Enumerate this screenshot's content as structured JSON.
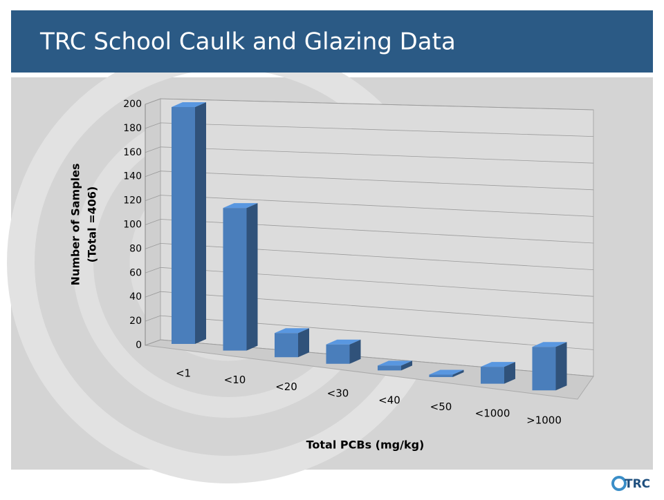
{
  "header": {
    "title": "TRC School Caulk and Glazing Data"
  },
  "logo": "TRC",
  "chart_data": {
    "type": "bar3d",
    "ylabel_lines": [
      "Number of Samples",
      "(Total =406)"
    ],
    "xlabel": "Total PCBs (mg/kg)",
    "categories": [
      "<1",
      "<10",
      "<20",
      "<30",
      "<40",
      "<50",
      "<1000",
      ">1000"
    ],
    "values": [
      196,
      118,
      20,
      16,
      4,
      2,
      14,
      36
    ],
    "color": "#4a7ebb",
    "ylim": [
      0,
      200
    ],
    "yticks": [
      0,
      20,
      40,
      60,
      80,
      100,
      120,
      140,
      160,
      180,
      200
    ],
    "grid": true
  }
}
